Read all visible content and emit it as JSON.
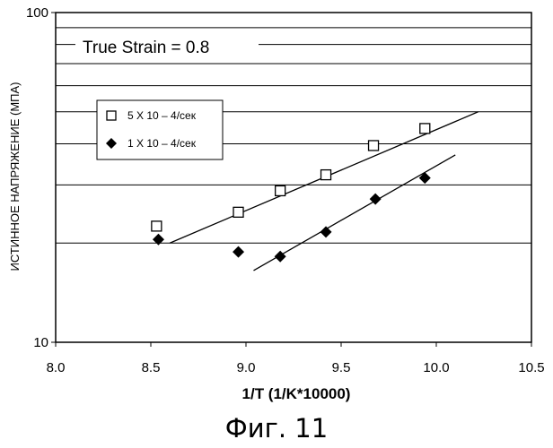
{
  "chart_data": {
    "type": "scatter",
    "ylabel": "ИСТИННОЕ НАПРЯЖЕНИЕ (МПА)",
    "xlabel": "1/T (1/K*10000)",
    "xlim": [
      8.0,
      10.5
    ],
    "ylim": [
      10,
      100
    ],
    "yscale": "log",
    "x_ticks": [
      "8.0",
      "8.5",
      "9.0",
      "9.5",
      "10.0",
      "10.5"
    ],
    "y_ticks": [
      "10",
      "100"
    ],
    "grid": "horizontal",
    "annotation": "True Strain =  0.8",
    "legend_position": "upper-left",
    "series": [
      {
        "name": "5 X 10 – 4/сек",
        "marker": "open-square",
        "x": [
          8.53,
          8.96,
          9.18,
          9.42,
          9.67,
          9.94
        ],
        "y": [
          22.5,
          24.8,
          28.8,
          32.2,
          39.5,
          44.5
        ],
        "trendline": {
          "x": [
            8.6,
            10.22
          ],
          "y": [
            20.0,
            50.0
          ]
        }
      },
      {
        "name": "1 X 10 – 4/сек",
        "marker": "filled-diamond",
        "x": [
          8.54,
          8.96,
          9.18,
          9.42,
          9.68,
          9.94
        ],
        "y": [
          20.5,
          18.8,
          18.2,
          21.6,
          27.2,
          31.5
        ],
        "trendline": {
          "x": [
            9.04,
            10.1
          ],
          "y": [
            16.5,
            37.0
          ]
        }
      }
    ]
  },
  "caption": "Фиг. 11"
}
